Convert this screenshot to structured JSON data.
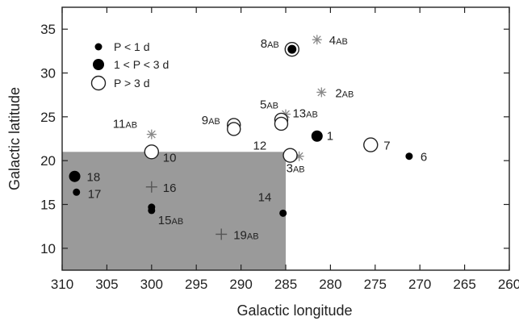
{
  "chart_data": {
    "type": "scatter",
    "title": "",
    "xlabel": "Galactic longitude",
    "ylabel": "Galactic latitude",
    "xlim": [
      310,
      260
    ],
    "ylim": [
      7.5,
      37.5
    ],
    "x_ticks": [
      310,
      305,
      300,
      295,
      290,
      285,
      280,
      275,
      270,
      265,
      260
    ],
    "y_ticks": [
      10,
      15,
      20,
      25,
      30,
      35
    ],
    "grid": false,
    "legend_position": "top-left",
    "legend": [
      {
        "marker": "small-dot",
        "label": "P < 1 d"
      },
      {
        "marker": "large-dot",
        "label": "1 < P < 3 d"
      },
      {
        "marker": "open-circle",
        "label": "P > 3 d"
      }
    ],
    "shaded_region": {
      "x": [
        310,
        285
      ],
      "y": [
        7.5,
        21
      ],
      "color": "#9a9a9a"
    },
    "points": [
      {
        "id": "1",
        "x": 281.5,
        "y": 22.8,
        "marker": "large-dot",
        "label": "1"
      },
      {
        "id": "2",
        "x": 281.0,
        "y": 27.8,
        "marker": "asterisk",
        "label": "2",
        "suffix": "AB"
      },
      {
        "id": "3",
        "x": 283.5,
        "y": 20.5,
        "marker": "asterisk",
        "label": "3",
        "suffix": "AB"
      },
      {
        "id": "4",
        "x": 281.5,
        "y": 33.8,
        "marker": "asterisk",
        "label": "4",
        "suffix": "AB"
      },
      {
        "id": "5",
        "x": 285.0,
        "y": 25.3,
        "marker": "asterisk",
        "label": "5",
        "suffix": "AB"
      },
      {
        "id": "6",
        "x": 271.2,
        "y": 20.5,
        "marker": "small-dot",
        "label": "6"
      },
      {
        "id": "7",
        "x": 275.5,
        "y": 21.8,
        "marker": "open-circle",
        "label": "7"
      },
      {
        "id": "8",
        "x": 284.3,
        "y": 32.7,
        "marker": "ringed-dot",
        "label": "8",
        "suffix": "AB"
      },
      {
        "id": "9",
        "x": 290.8,
        "y": 23.7,
        "marker": "double-open-circle",
        "label": "9",
        "suffix": "AB"
      },
      {
        "id": "10",
        "x": 300.0,
        "y": 21.0,
        "marker": "open-circle",
        "label": "10"
      },
      {
        "id": "11",
        "x": 300.0,
        "y": 23.0,
        "marker": "asterisk",
        "label": "11",
        "suffix": "AB"
      },
      {
        "id": "12",
        "x": 284.5,
        "y": 20.6,
        "marker": "open-circle",
        "label": "12"
      },
      {
        "id": "13",
        "x": 285.5,
        "y": 24.3,
        "marker": "double-open-circle",
        "label": "13",
        "suffix": "AB"
      },
      {
        "id": "14",
        "x": 285.3,
        "y": 14.0,
        "marker": "small-dot",
        "label": "14"
      },
      {
        "id": "15",
        "x": 300.0,
        "y": 14.5,
        "marker": "double-small-dot",
        "label": "15",
        "suffix": "AB"
      },
      {
        "id": "16",
        "x": 300.0,
        "y": 17.0,
        "marker": "plus",
        "label": "16"
      },
      {
        "id": "17",
        "x": 308.4,
        "y": 16.4,
        "marker": "small-dot",
        "label": "17"
      },
      {
        "id": "18",
        "x": 308.6,
        "y": 18.2,
        "marker": "large-dot",
        "label": "18"
      },
      {
        "id": "19",
        "x": 292.2,
        "y": 11.6,
        "marker": "plus",
        "label": "19",
        "suffix": "AB"
      }
    ]
  }
}
